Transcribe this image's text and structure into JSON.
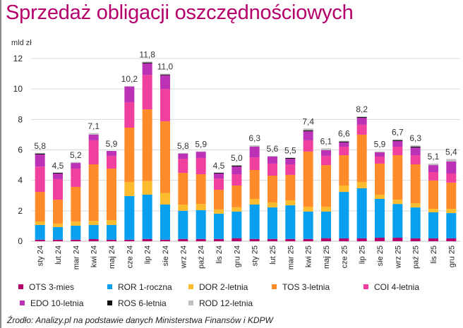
{
  "title": "Sprzedaż obligacji oszczędnościowych",
  "source": "Źrodło: Analizy.pl na podstawie danych Ministerstwa Finansów i KDPW",
  "chart_data": {
    "type": "bar",
    "stacked": true,
    "title": "Sprzedaż obligacji oszczędnościowych",
    "ylabel": "mld zł",
    "xlabel": "",
    "ylim": [
      0,
      12
    ],
    "yticks": [
      0,
      2,
      4,
      6,
      8,
      10,
      12
    ],
    "grid": true,
    "legend_position": "bottom",
    "categories": [
      "sty 24",
      "lut 24",
      "mar 24",
      "kwi 24",
      "maj 24",
      "cze 24",
      "lip 24",
      "sie 24",
      "wrz 24",
      "paź 24",
      "lis 24",
      "gru 24",
      "sty 25",
      "lut 25",
      "mar 25",
      "kwi 25",
      "maj 25",
      "cze 25",
      "lip 25",
      "sie 25",
      "wrz 25",
      "paź 25",
      "lis 25",
      "gru 25"
    ],
    "totals": [
      "5,8",
      "4,5",
      "5,2",
      "7,1",
      "5,9",
      "10,2",
      "11,8",
      "11,0",
      "5,8",
      "5,9",
      "4,5",
      "5,0",
      "6,3",
      "5,6",
      "5,5",
      "7,4",
      "6,1",
      "6,6",
      "8,2",
      "5,9",
      "6,7",
      "6,3",
      "5,1",
      "5,4"
    ],
    "series": [
      {
        "name": "OTS 3-mies",
        "color": "#b5006b",
        "values": [
          0.1,
          0.1,
          0.1,
          0.14,
          0.1,
          0.1,
          0.15,
          0.1,
          0.15,
          0.15,
          0.15,
          0.2,
          0.15,
          0.15,
          0.15,
          0.15,
          0.2,
          0.19,
          0.19,
          0.23,
          0.23,
          0.19,
          0.19,
          0.19
        ]
      },
      {
        "name": "ROR 1-roczna",
        "color": "#07a0ee",
        "values": [
          0.97,
          0.83,
          0.92,
          0.93,
          0.97,
          2.87,
          2.91,
          2.31,
          1.85,
          1.89,
          1.66,
          1.75,
          2.26,
          2.07,
          2.21,
          1.8,
          1.75,
          3.05,
          3.29,
          2.55,
          2.22,
          2.03,
          1.71,
          1.66
        ]
      },
      {
        "name": "DOR 2-letnia",
        "color": "#fdbb2f",
        "values": [
          0.23,
          0.23,
          0.28,
          0.27,
          0.32,
          0.92,
          0.89,
          0.76,
          0.41,
          0.41,
          0.28,
          0.28,
          0.37,
          0.33,
          0.33,
          0.32,
          0.32,
          0.42,
          0.41,
          0.28,
          0.28,
          0.28,
          0.23,
          0.28
        ]
      },
      {
        "name": "TOS 3-letnia",
        "color": "#ff8b2a",
        "values": [
          1.94,
          1.57,
          2.27,
          3.71,
          3.38,
          3.57,
          4.71,
          4.71,
          2.08,
          1.95,
          1.29,
          1.43,
          1.9,
          1.76,
          1.67,
          3.62,
          2.73,
          1.99,
          3.11,
          2.04,
          2.92,
          2.55,
          1.86,
          1.72
        ]
      },
      {
        "name": "COI 4-letnia",
        "color": "#ef3f9f",
        "values": [
          1.66,
          1.35,
          1.2,
          1.58,
          0.84,
          1.67,
          2.27,
          2.12,
          0.93,
          1.07,
          0.74,
          0.74,
          0.83,
          0.79,
          0.69,
          0.74,
          0.61,
          0.56,
          0.65,
          0.46,
          0.56,
          0.6,
          0.55,
          0.6
        ]
      },
      {
        "name": "EDO 10-letnia",
        "color": "#bb32b6",
        "values": [
          0.8,
          0.37,
          0.37,
          0.37,
          0.32,
          1.03,
          0.75,
          0.9,
          0.34,
          0.41,
          0.33,
          0.51,
          0.71,
          0.46,
          0.37,
          0.6,
          0.37,
          0.28,
          0.46,
          0.28,
          0.37,
          0.51,
          0.46,
          0.79
        ]
      },
      {
        "name": "ROS 6-letnia",
        "color": "#111111",
        "values": [
          0.06,
          0.05,
          0.0,
          0.0,
          0.0,
          0.0,
          0.06,
          0.05,
          0.0,
          0.0,
          0.05,
          0.06,
          0.0,
          0.0,
          0.05,
          0.06,
          0.0,
          0.06,
          0.05,
          0.0,
          0.06,
          0.06,
          0.0,
          0.0
        ]
      },
      {
        "name": "ROD 12-letnia",
        "color": "#bfbfbf",
        "values": [
          0.04,
          0.0,
          0.06,
          0.1,
          0.0,
          0.04,
          0.06,
          0.05,
          0.04,
          0.02,
          0.0,
          0.03,
          0.08,
          0.04,
          0.03,
          0.11,
          0.12,
          0.05,
          0.04,
          0.06,
          0.06,
          0.08,
          0.1,
          0.16
        ]
      }
    ]
  }
}
